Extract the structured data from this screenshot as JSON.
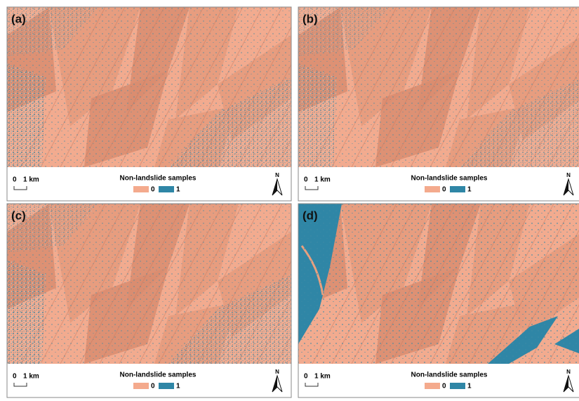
{
  "panels": [
    {
      "label": "(a)",
      "scale_zero": "0",
      "scale_unit": "1 km",
      "legend_title": "Non-landslide samples",
      "legend": [
        "0",
        "1"
      ],
      "north": "N"
    },
    {
      "label": "(b)",
      "scale_zero": "0",
      "scale_unit": "1 km",
      "legend_title": "Non-landslide samples",
      "legend": [
        "0",
        "1"
      ],
      "north": "N"
    },
    {
      "label": "(c)",
      "scale_zero": "0",
      "scale_unit": "1 km",
      "legend_title": "Non-landslide samples",
      "legend": [
        "0",
        "1"
      ],
      "north": "N"
    },
    {
      "label": "(d)",
      "scale_zero": "0",
      "scale_unit": "1 km",
      "legend_title": "Non-landslide samples",
      "legend": [
        "0",
        "1"
      ],
      "north": "N"
    }
  ]
}
